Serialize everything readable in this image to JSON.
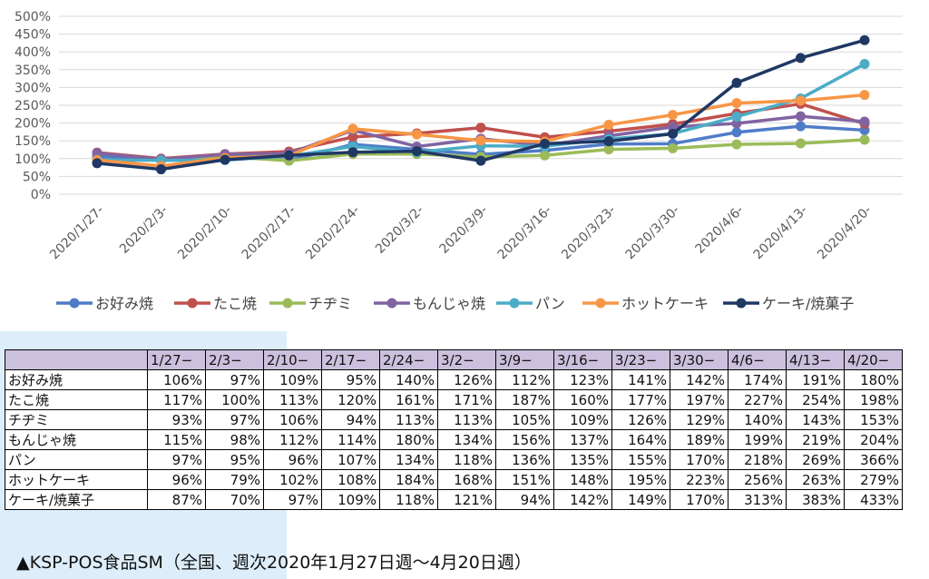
{
  "chart_data": {
    "type": "line",
    "categories": [
      "2020/1/27-",
      "2020/2/3-",
      "2020/2/10-",
      "2020/2/17-",
      "2020/2/24-",
      "2020/3/2-",
      "2020/3/9-",
      "2020/3/16-",
      "2020/3/23-",
      "2020/3/30-",
      "2020/4/6-",
      "2020/4/13-",
      "2020/4/20-"
    ],
    "y_ticks": [
      "0%",
      "50%",
      "100%",
      "150%",
      "200%",
      "250%",
      "300%",
      "350%",
      "400%",
      "450%",
      "500%"
    ],
    "ylim": [
      0,
      500
    ],
    "grid": "horizontal",
    "legend_position": "bottom",
    "series": [
      {
        "name": "お好み焼",
        "color": "#4f7cc8",
        "values": [
          106,
          97,
          109,
          95,
          140,
          126,
          112,
          123,
          141,
          142,
          174,
          191,
          180
        ]
      },
      {
        "name": "たこ焼",
        "color": "#c0504d",
        "values": [
          117,
          100,
          113,
          120,
          161,
          171,
          187,
          160,
          177,
          197,
          227,
          254,
          198
        ]
      },
      {
        "name": "チヂミ",
        "color": "#9bbb59",
        "values": [
          93,
          97,
          106,
          94,
          113,
          113,
          105,
          109,
          126,
          129,
          140,
          143,
          153
        ]
      },
      {
        "name": "もんじゃ焼",
        "color": "#8064a2",
        "values": [
          115,
          98,
          112,
          114,
          180,
          134,
          156,
          137,
          164,
          189,
          199,
          219,
          204
        ]
      },
      {
        "name": "パン",
        "color": "#4bacc6",
        "values": [
          97,
          95,
          96,
          107,
          134,
          118,
          136,
          135,
          155,
          170,
          218,
          269,
          366
        ]
      },
      {
        "name": "ホットケーキ",
        "color": "#f79646",
        "values": [
          96,
          79,
          102,
          108,
          184,
          168,
          151,
          148,
          195,
          223,
          256,
          263,
          279
        ]
      },
      {
        "name": "ケーキ/焼菓子",
        "color": "#1f3864",
        "values": [
          87,
          70,
          97,
          109,
          118,
          121,
          94,
          142,
          149,
          170,
          313,
          383,
          433
        ]
      }
    ]
  },
  "table": {
    "headers": [
      "1/27−",
      "2/3−",
      "2/10−",
      "2/17−",
      "2/24−",
      "3/2−",
      "3/9−",
      "3/16−",
      "3/23−",
      "3/30−",
      "4/6−",
      "4/13−",
      "4/20−"
    ],
    "rows": [
      {
        "label": "お好み焼",
        "cells": [
          "106%",
          "97%",
          "109%",
          "95%",
          "140%",
          "126%",
          "112%",
          "123%",
          "141%",
          "142%",
          "174%",
          "191%",
          "180%"
        ]
      },
      {
        "label": "たこ焼",
        "cells": [
          "117%",
          "100%",
          "113%",
          "120%",
          "161%",
          "171%",
          "187%",
          "160%",
          "177%",
          "197%",
          "227%",
          "254%",
          "198%"
        ]
      },
      {
        "label": "チヂミ",
        "cells": [
          "93%",
          "97%",
          "106%",
          "94%",
          "113%",
          "113%",
          "105%",
          "109%",
          "126%",
          "129%",
          "140%",
          "143%",
          "153%"
        ]
      },
      {
        "label": "もんじゃ焼",
        "cells": [
          "115%",
          "98%",
          "112%",
          "114%",
          "180%",
          "134%",
          "156%",
          "137%",
          "164%",
          "189%",
          "199%",
          "219%",
          "204%"
        ]
      },
      {
        "label": "パン",
        "cells": [
          "97%",
          "95%",
          "96%",
          "107%",
          "134%",
          "118%",
          "136%",
          "135%",
          "155%",
          "170%",
          "218%",
          "269%",
          "366%"
        ]
      },
      {
        "label": "ホットケーキ",
        "cells": [
          "96%",
          "79%",
          "102%",
          "108%",
          "184%",
          "168%",
          "151%",
          "148%",
          "195%",
          "223%",
          "256%",
          "263%",
          "279%"
        ]
      },
      {
        "label": "ケーキ/焼菓子",
        "cells": [
          "87%",
          "70%",
          "97%",
          "109%",
          "118%",
          "121%",
          "94%",
          "142%",
          "149%",
          "170%",
          "313%",
          "383%",
          "433%"
        ]
      }
    ]
  },
  "caption": "▲KSP-POS食品SM（全国、週次2020年1月27日週～4月20日週）"
}
